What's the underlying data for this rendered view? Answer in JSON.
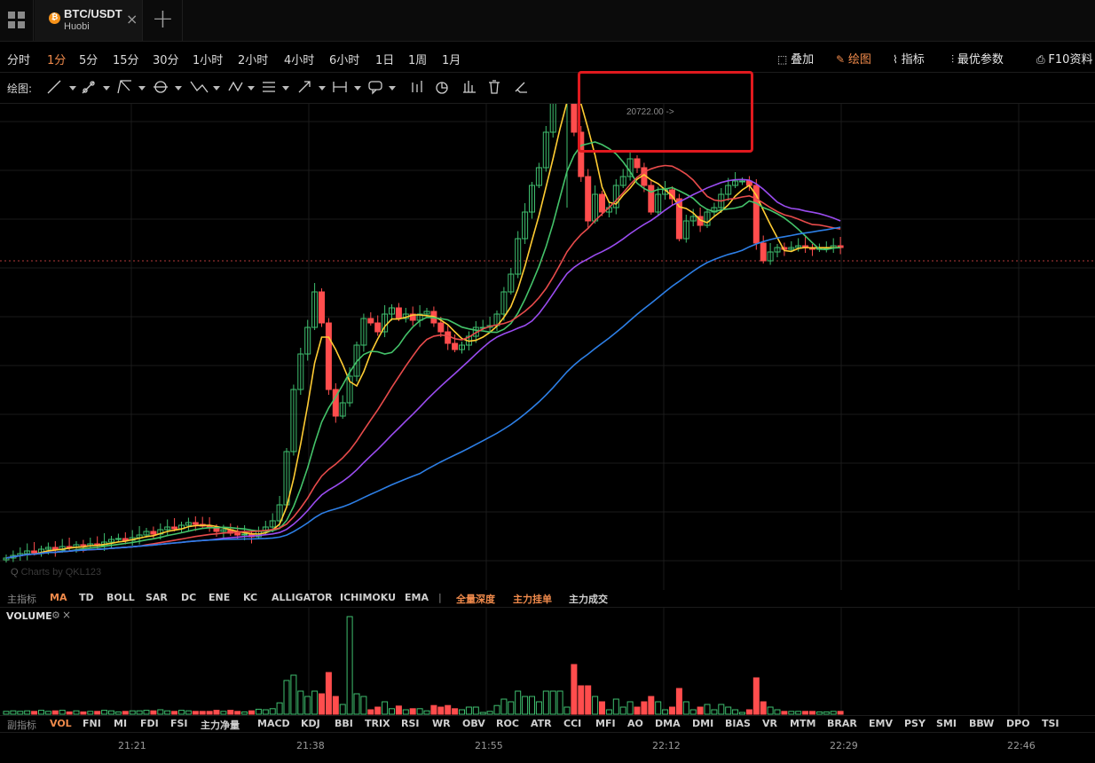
{
  "tab": {
    "pair": "BTC/USDT",
    "exchange": "Huobi",
    "close_glyph": "×",
    "add_glyph": "+",
    "coin_glyph": "₿"
  },
  "timeframes": [
    {
      "label": "分时",
      "active": false
    },
    {
      "label": "1分",
      "active": true
    },
    {
      "label": "5分",
      "active": false
    },
    {
      "label": "15分",
      "active": false
    },
    {
      "label": "30分",
      "active": false
    },
    {
      "label": "1小时",
      "active": false
    },
    {
      "label": "2小时",
      "active": false
    },
    {
      "label": "4小时",
      "active": false
    },
    {
      "label": "6小时",
      "active": false
    },
    {
      "label": "1日",
      "active": false
    },
    {
      "label": "1周",
      "active": false
    },
    {
      "label": "1月",
      "active": false
    }
  ],
  "right_tools": [
    {
      "label": "叠加",
      "icon": "layers-icon",
      "active": false
    },
    {
      "label": "绘图",
      "icon": "pen-icon",
      "active": true
    },
    {
      "label": "指标",
      "icon": "line-chart-icon",
      "active": false
    },
    {
      "label": "最优参数",
      "icon": "sliders-icon",
      "active": false
    },
    {
      "label": "F10资料",
      "icon": "doc-icon",
      "active": false
    }
  ],
  "drawing": {
    "label": "绘图:"
  },
  "main_indicators": {
    "label": "主指标",
    "items": [
      {
        "label": "MA",
        "active": true
      },
      {
        "label": "TD"
      },
      {
        "label": "BOLL"
      },
      {
        "label": "SAR"
      },
      {
        "label": "DC"
      },
      {
        "label": "ENE"
      },
      {
        "label": "KC"
      },
      {
        "label": "ALLIGATOR"
      },
      {
        "label": "ICHIMOKU"
      },
      {
        "label": "EMA"
      }
    ],
    "separator": "|",
    "extras": [
      {
        "label": "全量深度"
      },
      {
        "label": "主力挂单"
      },
      {
        "label": "主力成交"
      }
    ]
  },
  "sub_indicators": {
    "label": "副指标",
    "items": [
      "VOL",
      "FNI",
      "MI",
      "FDI",
      "FSI",
      "主力净量",
      "MACD",
      "KDJ",
      "BBI",
      "TRIX",
      "RSI",
      "WR",
      "OBV",
      "ROC",
      "ATR",
      "CCI",
      "MFI",
      "AO",
      "DMA",
      "DMI",
      "BIAS",
      "VR",
      "MTM",
      "BRAR",
      "EMV",
      "PSY",
      "SMI",
      "BBW",
      "DPO",
      "TSI"
    ],
    "active": "VOL"
  },
  "volume_pane": {
    "title": "VOLUME"
  },
  "time_axis": [
    "21:21",
    "21:38",
    "21:55",
    "22:12",
    "22:29",
    "22:46"
  ],
  "high_label": "20722.00 ->",
  "watermark": "Charts by QKL123",
  "colors": {
    "up": "#3fbf6f",
    "down": "#ff4d4d",
    "ma5": "#ffcc33",
    "ma10": "#44c36a",
    "ma20": "#e84b4b",
    "ma30": "#9a4cf0",
    "ma60": "#2d7fe6",
    "accent": "#f08a4b",
    "highlight": "#e0191e"
  },
  "chart_data": {
    "type": "candlestick",
    "symbol": "BTC/USDT",
    "interval": "1m",
    "highlighted_high": 20722.0,
    "close": [
      0,
      3,
      5,
      8,
      6,
      10,
      12,
      9,
      13,
      12,
      15,
      14,
      16,
      14,
      18,
      21,
      22,
      20,
      23,
      26,
      30,
      27,
      32,
      35,
      33,
      37,
      40,
      38,
      36,
      34,
      30,
      32,
      28,
      26,
      27,
      24,
      30,
      35,
      42,
      60,
      120,
      190,
      230,
      260,
      300,
      265,
      190,
      160,
      175,
      205,
      240,
      270,
      265,
      255,
      275,
      282,
      270,
      275,
      268,
      275,
      278,
      265,
      255,
      242,
      235,
      240,
      250,
      260,
      260,
      262,
      275,
      300,
      320,
      360,
      390,
      420,
      440,
      480,
      520,
      560,
      570,
      480,
      430,
      380,
      410,
      390,
      395,
      420,
      430,
      450,
      440,
      420,
      390,
      410,
      415,
      405,
      360,
      380,
      385,
      375,
      390,
      395,
      410,
      420,
      425,
      425,
      420,
      355,
      335,
      345,
      350,
      348,
      350,
      352,
      350,
      348,
      349,
      350,
      352,
      350
    ]
  }
}
